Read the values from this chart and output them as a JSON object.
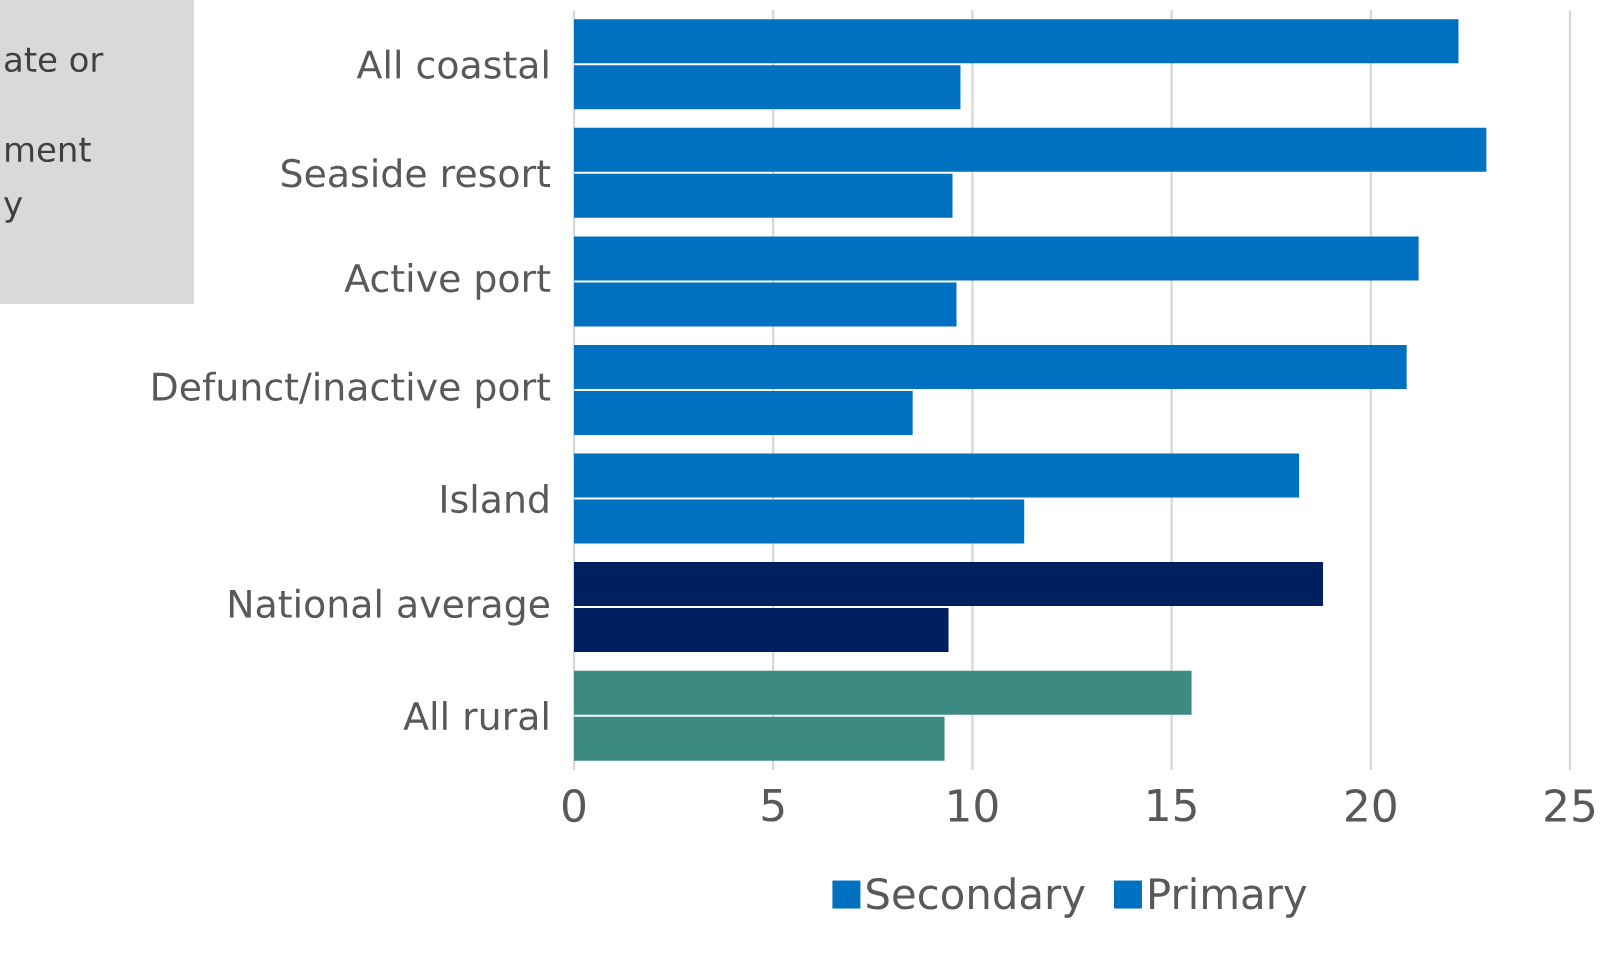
{
  "chart_data": {
    "type": "bar",
    "orientation": "horizontal",
    "categories": [
      "All coastal",
      "Seaside resort",
      "Active port",
      "Defunct/inactive port",
      "Island",
      "National average",
      "All rural"
    ],
    "series": [
      {
        "name": "Secondary",
        "colors": [
          "#0070c0",
          "#0070c0",
          "#0070c0",
          "#0070c0",
          "#0070c0",
          "#001f5f",
          "#3d8a83"
        ],
        "values": [
          22.2,
          22.9,
          21.2,
          20.9,
          18.2,
          18.8,
          15.5
        ]
      },
      {
        "name": "Primary",
        "colors": [
          "#0070c0",
          "#0070c0",
          "#0070c0",
          "#0070c0",
          "#0070c0",
          "#001f5f",
          "#3d8a83"
        ],
        "values": [
          9.7,
          9.5,
          9.6,
          8.5,
          11.3,
          9.4,
          9.3
        ]
      }
    ],
    "xlim": [
      0,
      25
    ],
    "xticks": [
      0,
      5,
      10,
      15,
      20,
      25
    ],
    "grid": "x",
    "legend": "bottom",
    "annotations": [
      "ate or",
      "ment",
      "y"
    ]
  }
}
